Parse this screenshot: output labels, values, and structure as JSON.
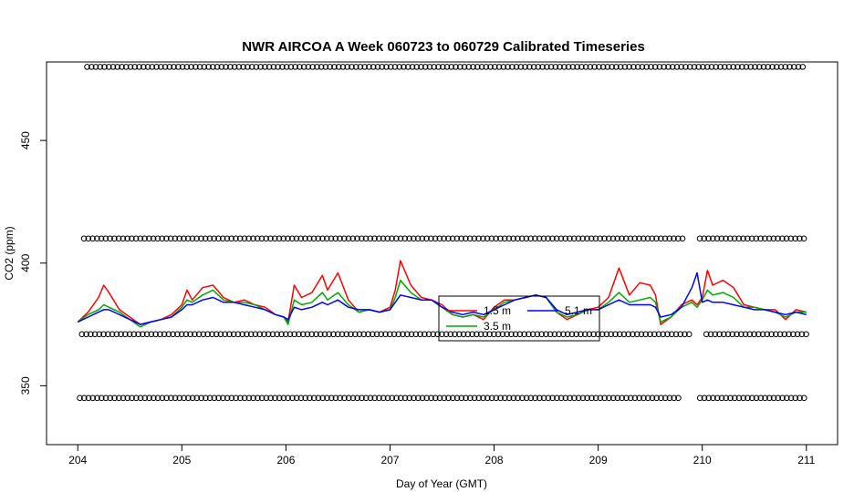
{
  "chart_data": {
    "type": "line",
    "title": "NWR AIRCOA A  Week 060723 to 060729  Calibrated Timeseries",
    "xlabel": "Day of Year (GMT)",
    "ylabel": "CO2 (ppm)",
    "xlim": [
      203.7,
      211.3
    ],
    "ylim": [
      326,
      482
    ],
    "xticks": [
      204,
      205,
      206,
      207,
      208,
      209,
      210,
      211
    ],
    "yticks": [
      350,
      400,
      450
    ],
    "grid": false,
    "legend": {
      "placement": "bottom-center",
      "entries": [
        {
          "name": "1.5 m",
          "color": "#ff0000"
        },
        {
          "name": "5.1 m",
          "color": "#0000ff"
        },
        {
          "name": "3.5 m",
          "color": "#00aa00"
        }
      ]
    },
    "series": [
      {
        "name": "1.5 m",
        "color": "#ff0000",
        "x": [
          204.0,
          204.1,
          204.2,
          204.25,
          204.3,
          204.4,
          204.5,
          204.6,
          204.7,
          204.8,
          204.9,
          205.0,
          205.05,
          205.1,
          205.2,
          205.3,
          205.4,
          205.5,
          205.6,
          205.7,
          205.8,
          205.9,
          205.98,
          206.02,
          206.08,
          206.15,
          206.25,
          206.35,
          206.4,
          206.5,
          206.6,
          206.7,
          206.8,
          206.9,
          207.0,
          207.05,
          207.1,
          207.2,
          207.3,
          207.4,
          207.5,
          207.6,
          207.7,
          207.8,
          207.9,
          208.0,
          208.1,
          208.2,
          208.3,
          208.4,
          208.5,
          208.6,
          208.7,
          208.8,
          208.9,
          209.0,
          209.1,
          209.2,
          209.3,
          209.4,
          209.5,
          209.55,
          209.6,
          209.7,
          209.8,
          209.9,
          209.95,
          210.0,
          210.05,
          210.1,
          210.2,
          210.3,
          210.4,
          210.5,
          210.6,
          210.7,
          210.8,
          210.9,
          211.0
        ],
        "values": [
          376,
          380,
          386,
          391,
          388,
          381,
          378,
          375,
          376,
          377,
          379,
          383,
          389,
          385,
          390,
          391,
          386,
          384,
          385,
          383,
          382,
          379,
          378,
          376,
          391,
          386,
          388,
          395,
          389,
          396,
          385,
          380,
          381,
          380,
          382,
          389,
          401,
          391,
          386,
          385,
          383,
          379,
          378,
          379,
          377,
          382,
          385,
          385,
          386,
          387,
          386,
          380,
          377,
          379,
          381,
          382,
          386,
          398,
          387,
          392,
          391,
          387,
          375,
          378,
          383,
          385,
          383,
          386,
          397,
          391,
          393,
          390,
          383,
          382,
          381,
          381,
          377,
          381,
          380
        ]
      },
      {
        "name": "3.5 m",
        "color": "#00aa00",
        "x": [
          204.0,
          204.1,
          204.2,
          204.25,
          204.3,
          204.4,
          204.5,
          204.6,
          204.7,
          204.8,
          204.9,
          205.0,
          205.05,
          205.1,
          205.2,
          205.3,
          205.4,
          205.5,
          205.6,
          205.7,
          205.8,
          205.9,
          205.98,
          206.02,
          206.08,
          206.15,
          206.25,
          206.35,
          206.4,
          206.5,
          206.6,
          206.7,
          206.8,
          206.9,
          207.0,
          207.05,
          207.1,
          207.2,
          207.3,
          207.4,
          207.5,
          207.6,
          207.7,
          207.8,
          207.9,
          208.0,
          208.1,
          208.2,
          208.3,
          208.4,
          208.5,
          208.6,
          208.7,
          208.8,
          208.9,
          209.0,
          209.1,
          209.2,
          209.3,
          209.4,
          209.5,
          209.55,
          209.6,
          209.7,
          209.8,
          209.9,
          209.95,
          210.0,
          210.05,
          210.1,
          210.2,
          210.3,
          210.4,
          210.5,
          210.6,
          210.7,
          210.8,
          210.9,
          211.0
        ],
        "values": [
          376,
          379,
          381,
          383,
          382,
          380,
          377,
          374,
          376,
          377,
          378,
          382,
          385,
          384,
          387,
          389,
          385,
          384,
          384,
          383,
          381,
          379,
          378,
          375,
          385,
          383,
          384,
          388,
          385,
          388,
          383,
          380,
          381,
          380,
          381,
          386,
          393,
          388,
          385,
          385,
          382,
          379,
          378,
          379,
          378,
          381,
          384,
          385,
          386,
          387,
          386,
          380,
          378,
          379,
          381,
          381,
          384,
          388,
          384,
          385,
          386,
          384,
          376,
          378,
          382,
          384,
          382,
          385,
          389,
          387,
          388,
          386,
          382,
          382,
          381,
          380,
          378,
          380,
          380
        ]
      },
      {
        "name": "5.1 m",
        "color": "#0000ff",
        "x": [
          204.0,
          204.1,
          204.2,
          204.25,
          204.3,
          204.4,
          204.5,
          204.6,
          204.7,
          204.8,
          204.9,
          205.0,
          205.05,
          205.1,
          205.2,
          205.3,
          205.4,
          205.5,
          205.6,
          205.7,
          205.8,
          205.9,
          205.98,
          206.02,
          206.08,
          206.15,
          206.25,
          206.35,
          206.4,
          206.5,
          206.6,
          206.7,
          206.8,
          206.9,
          207.0,
          207.05,
          207.1,
          207.2,
          207.3,
          207.4,
          207.5,
          207.6,
          207.7,
          207.8,
          207.9,
          208.0,
          208.1,
          208.2,
          208.3,
          208.4,
          208.5,
          208.6,
          208.7,
          208.8,
          208.9,
          209.0,
          209.1,
          209.2,
          209.3,
          209.4,
          209.5,
          209.55,
          209.6,
          209.7,
          209.8,
          209.9,
          209.95,
          210.0,
          210.05,
          210.1,
          210.2,
          210.3,
          210.4,
          210.5,
          210.6,
          210.7,
          210.8,
          210.9,
          211.0
        ],
        "values": [
          376,
          378,
          380,
          381,
          381,
          379,
          377,
          375,
          376,
          377,
          378,
          381,
          383,
          383,
          385,
          386,
          384,
          384,
          383,
          382,
          381,
          379,
          378,
          377,
          382,
          381,
          382,
          384,
          383,
          385,
          382,
          381,
          381,
          380,
          381,
          384,
          387,
          386,
          385,
          385,
          382,
          380,
          379,
          380,
          379,
          381,
          383,
          385,
          386,
          387,
          386,
          381,
          379,
          380,
          381,
          381,
          383,
          385,
          383,
          383,
          383,
          382,
          378,
          379,
          382,
          390,
          396,
          384,
          385,
          384,
          384,
          383,
          382,
          381,
          381,
          380,
          379,
          380,
          379
        ]
      }
    ],
    "markers": {
      "symbol": "circle",
      "rows": [
        {
          "y": 480,
          "x_start": 204.09,
          "x_end": 211.0,
          "gaps": []
        },
        {
          "y": 410,
          "x_start": 204.06,
          "x_end": 211.0,
          "gaps": [
            [
              209.85,
              209.95
            ]
          ]
        },
        {
          "y": 371,
          "x_start": 204.04,
          "x_end": 211.0,
          "gaps": [
            [
              209.9,
              210.0
            ]
          ]
        },
        {
          "y": 345,
          "x_start": 204.02,
          "x_end": 211.0,
          "gaps": [
            [
              209.8,
              209.95
            ]
          ]
        }
      ]
    }
  }
}
